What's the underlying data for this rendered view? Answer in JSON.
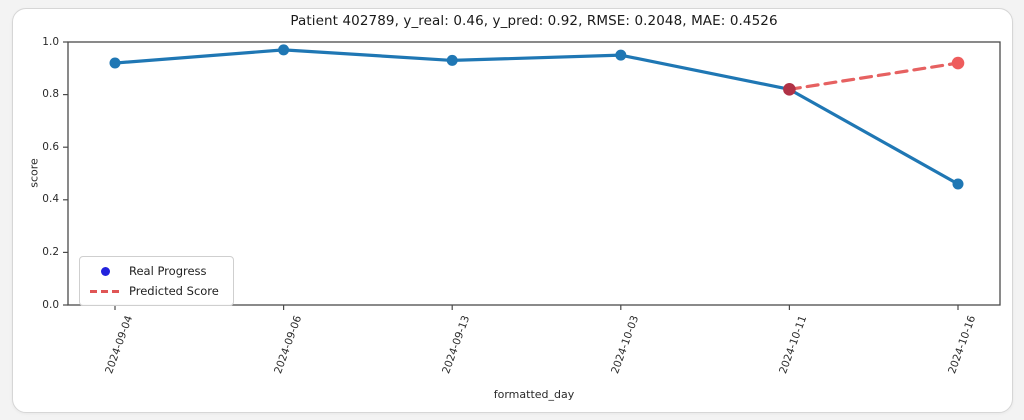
{
  "page": {
    "background": "#f3f3f3",
    "card_bg": "#ffffff",
    "card_border": "#d6d6d6"
  },
  "chart_data": {
    "type": "line",
    "title": "Patient 402789, y_real: 0.46, y_pred: 0.92, RMSE: 0.2048, MAE: 0.4526",
    "xlabel": "formatted_day",
    "ylabel": "score",
    "categories": [
      "2024-09-04",
      "2024-09-06",
      "2024-09-13",
      "2024-10-03",
      "2024-10-11",
      "2024-10-16"
    ],
    "ytick_labels": [
      "0.0",
      "0.2",
      "0.4",
      "0.6",
      "0.8",
      "1.0"
    ],
    "yticks": [
      0.0,
      0.2,
      0.4,
      0.6,
      0.8,
      1.0
    ],
    "ylim": [
      0.0,
      1.0
    ],
    "grid": false,
    "legend_position": "lower left",
    "frame_color": "#4a4a4a",
    "series": [
      {
        "name": "Real Progress",
        "values": [
          0.92,
          0.97,
          0.93,
          0.95,
          0.82,
          0.46
        ],
        "color": "#1f77b4",
        "line_style": "solid",
        "marker": "circle",
        "marker_colors": [
          "#1f77b4",
          "#1f77b4",
          "#1f77b4",
          "#1f77b4",
          "#1f77b4",
          "#1f77b4"
        ],
        "legend_marker": "dot",
        "legend_marker_color": "#2222dd"
      },
      {
        "name": "Predicted Score",
        "values": [
          null,
          null,
          null,
          null,
          0.82,
          0.92
        ],
        "color": "#e66161",
        "line_style": "dashed",
        "marker": "circle",
        "marker_colors": [
          null,
          null,
          null,
          null,
          "#b03246",
          "#ee5c5c"
        ],
        "legend_marker": "dashes",
        "legend_marker_color": "#e05555"
      }
    ]
  }
}
